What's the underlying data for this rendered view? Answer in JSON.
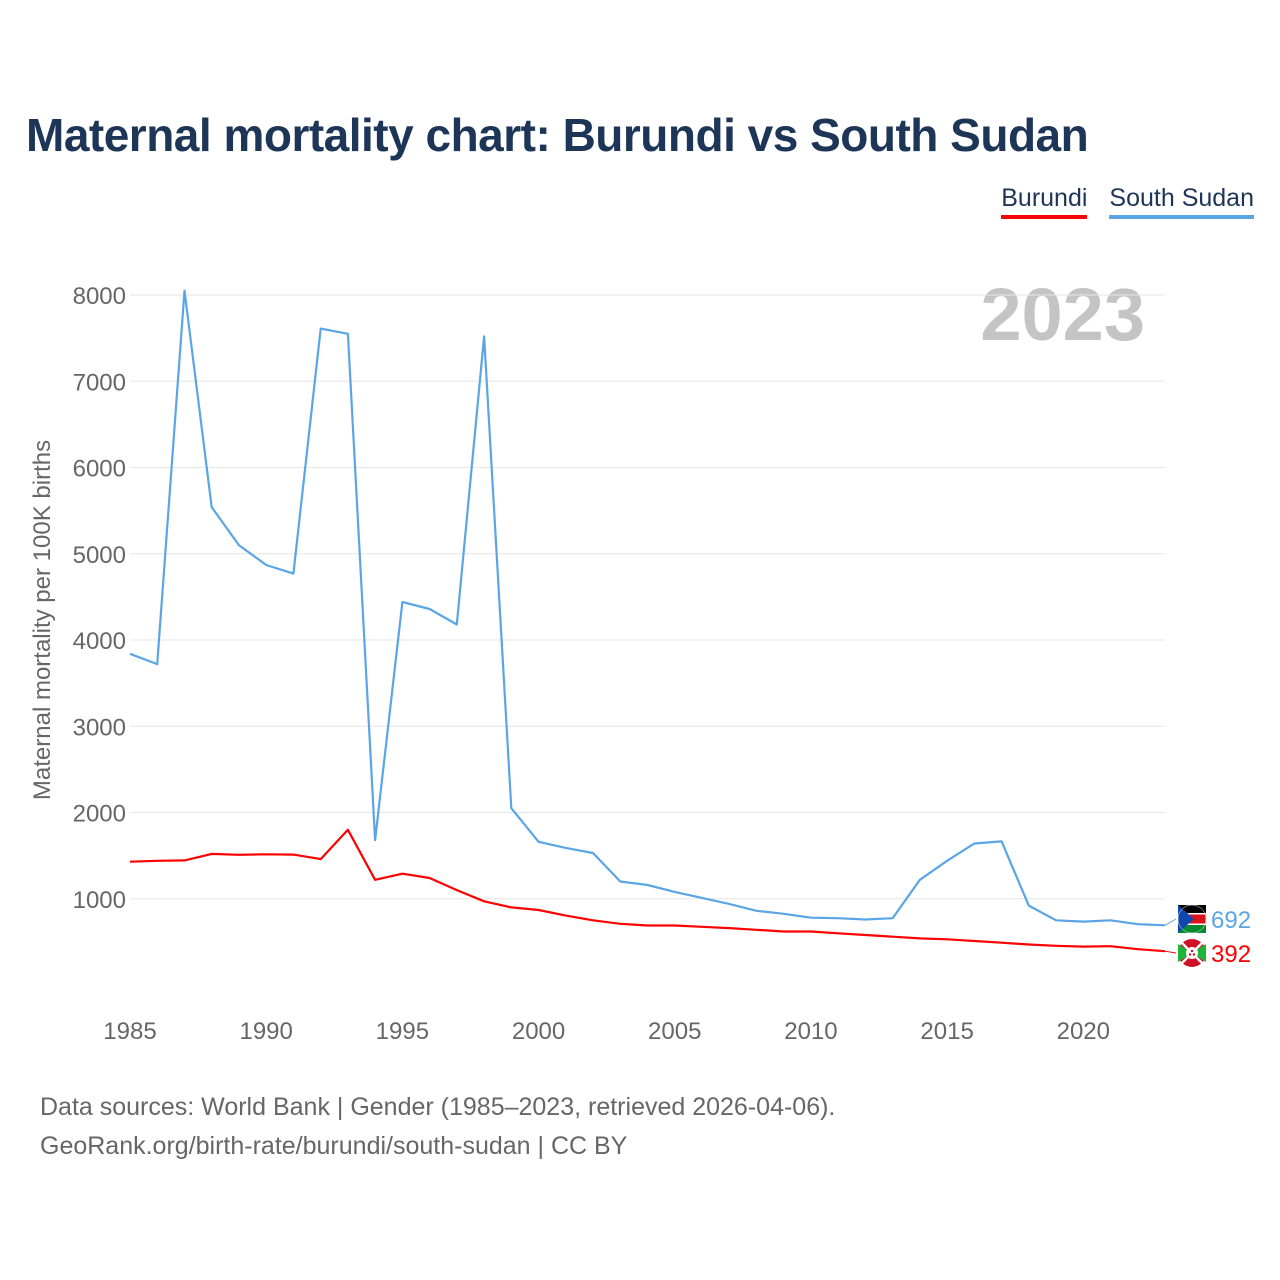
{
  "title": "Maternal mortality chart: Burundi vs South Sudan",
  "legend": {
    "burundi": "Burundi",
    "south_sudan": "South Sudan"
  },
  "year_watermark": "2023",
  "source_line1": "Data sources: World Bank | Gender (1985–2023, retrieved 2026-04-06).",
  "source_line2": "GeoRank.org/birth-rate/burundi/south-sudan | CC BY",
  "chart_data": {
    "type": "line",
    "title": "Maternal mortality chart: Burundi vs South Sudan",
    "xlabel": "",
    "ylabel": "Maternal mortality per 100K births",
    "xlim": [
      1985,
      2023
    ],
    "ylim": [
      0,
      8000
    ],
    "x_ticks": [
      1985,
      1990,
      1995,
      2000,
      2005,
      2010,
      2015,
      2020
    ],
    "y_ticks": [
      1000,
      2000,
      3000,
      4000,
      5000,
      6000,
      7000,
      8000
    ],
    "grid": true,
    "legend_position": "top-right",
    "x": [
      1985,
      1986,
      1987,
      1988,
      1989,
      1990,
      1991,
      1992,
      1993,
      1994,
      1995,
      1996,
      1997,
      1998,
      1999,
      2000,
      2001,
      2002,
      2003,
      2004,
      2005,
      2006,
      2007,
      2008,
      2009,
      2010,
      2011,
      2012,
      2013,
      2014,
      2015,
      2016,
      2017,
      2018,
      2019,
      2020,
      2021,
      2022,
      2023
    ],
    "series": [
      {
        "name": "Burundi",
        "color": "#ff0000",
        "end_label": "392",
        "values": [
          1430,
          1440,
          1445,
          1520,
          1510,
          1515,
          1512,
          1460,
          1800,
          1220,
          1290,
          1240,
          1100,
          970,
          900,
          870,
          805,
          750,
          710,
          690,
          690,
          675,
          660,
          640,
          620,
          620,
          600,
          580,
          560,
          540,
          530,
          510,
          490,
          470,
          455,
          445,
          450,
          415,
          392
        ]
      },
      {
        "name": "South Sudan",
        "color": "#5aa5e6",
        "end_label": "692",
        "values": [
          3840,
          3720,
          8050,
          5540,
          5100,
          4870,
          4770,
          7610,
          7550,
          1680,
          4440,
          4360,
          4180,
          7520,
          2050,
          1660,
          1590,
          1530,
          1200,
          1160,
          1080,
          1010,
          940,
          860,
          825,
          780,
          775,
          760,
          775,
          1220,
          1440,
          1640,
          1665,
          920,
          750,
          735,
          750,
          705,
          692
        ]
      }
    ]
  }
}
